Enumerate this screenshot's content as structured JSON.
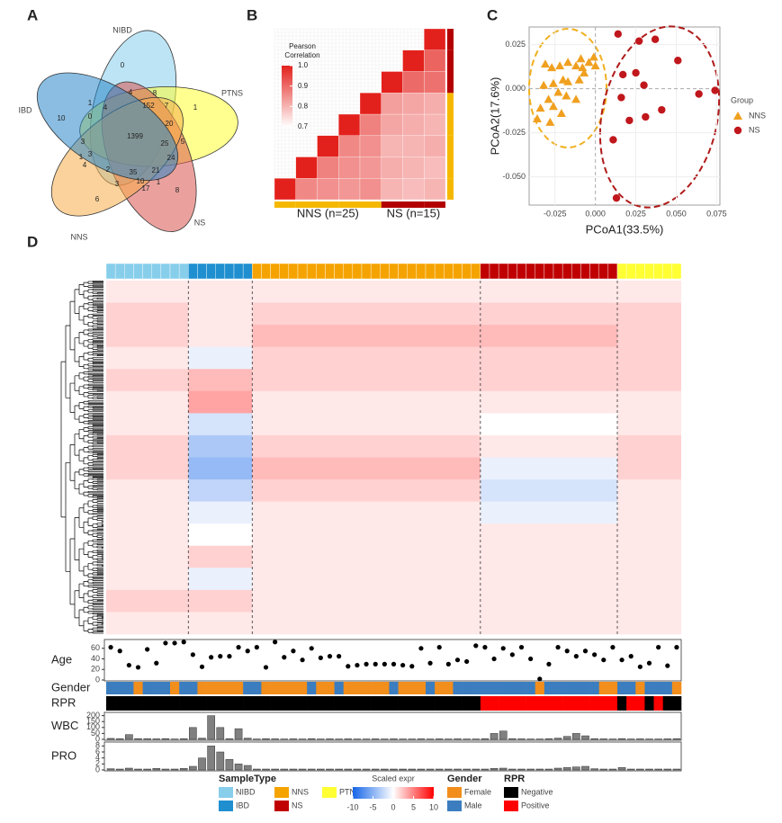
{
  "chart_data": [
    {
      "panel": "A",
      "type": "venn",
      "sets": [
        "NIBD",
        "PTNS",
        "NS",
        "NNS",
        "IBD"
      ],
      "colors": [
        "#87ceeb",
        "#ffff33",
        "#d9534f",
        "#f7ad4a",
        "#2a86c9"
      ],
      "counts": [
        0,
        1,
        8,
        6,
        10,
        1399,
        152,
        20,
        25,
        24,
        35,
        21,
        2,
        3,
        4,
        4,
        8,
        7,
        5,
        1,
        0,
        3,
        3,
        1,
        4,
        10,
        17,
        1
      ]
    },
    {
      "panel": "B",
      "type": "heatmap",
      "colorbar_title": [
        "Pearson",
        "Correlation"
      ],
      "zlim": [
        0.7,
        1.0
      ],
      "zticks": [
        0.7,
        0.8,
        0.9,
        {
          "value": 1.0,
          "label": "1.0"
        }
      ],
      "low_color": "#ffffff",
      "high_color": "#e3211c",
      "groups": [
        {
          "label": "NNS (n=25)",
          "color": "#f5b800"
        },
        {
          "label": "NS (n=15)",
          "color": "#b30000"
        }
      ],
      "block_group": [
        0,
        0,
        0,
        0,
        0,
        1,
        1,
        1
      ],
      "values": [
        [
          1,
          0.86,
          0.85,
          0.84,
          0.85,
          0.8,
          0.79,
          0.8
        ],
        [
          0.86,
          1,
          0.87,
          0.85,
          0.84,
          0.81,
          0.8,
          0.79
        ],
        [
          0.85,
          0.87,
          1,
          0.86,
          0.85,
          0.8,
          0.8,
          0.81
        ],
        [
          0.84,
          0.85,
          0.86,
          1,
          0.87,
          0.82,
          0.81,
          0.8
        ],
        [
          0.85,
          0.84,
          0.85,
          0.87,
          1,
          0.83,
          0.82,
          0.81
        ],
        [
          0.8,
          0.81,
          0.8,
          0.82,
          0.83,
          1,
          0.9,
          0.89
        ],
        [
          0.79,
          0.8,
          0.8,
          0.81,
          0.82,
          0.9,
          1,
          0.91
        ],
        [
          0.8,
          0.79,
          0.81,
          0.8,
          0.81,
          0.89,
          0.91,
          1
        ]
      ]
    },
    {
      "panel": "C",
      "type": "scatter",
      "x_label": "PCoA1(33.5%)",
      "y_label": "PCoA2(17.6%)",
      "legend_title": "Group",
      "xlim": [
        -0.041,
        0.077
      ],
      "ylim": [
        -0.066,
        0.035
      ],
      "xticks": [
        -0.025,
        {
          "value": 0,
          "label": "0.000"
        },
        0.025,
        {
          "value": 0.05,
          "label": "0.050"
        },
        0.075
      ],
      "yticks": [
        {
          "value": -0.05,
          "label": "-0.050"
        },
        -0.025,
        {
          "value": 0,
          "label": "0.000"
        },
        0.025
      ],
      "grid": true,
      "series": [
        {
          "name": "NNS",
          "color": "#f0a020",
          "marker": "triangle",
          "x": [
            -0.031,
            -0.027,
            -0.022,
            -0.017,
            -0.012,
            -0.009,
            -0.004,
            -0.001,
            0.0,
            -0.007,
            -0.02,
            -0.026,
            -0.017,
            -0.01,
            -0.023,
            -0.018,
            -0.029,
            -0.012,
            -0.034,
            -0.026,
            -0.021,
            -0.036,
            -0.028,
            -0.032,
            -0.008
          ],
          "y": [
            0.014,
            0.012,
            0.013,
            0.015,
            0.013,
            0.017,
            0.015,
            0.018,
            0.013,
            0.009,
            0.005,
            0.003,
            0.004,
            0.005,
            -0.002,
            -0.004,
            -0.006,
            -0.006,
            -0.011,
            -0.01,
            -0.014,
            -0.017,
            -0.019,
            0.002,
            0.012
          ]
        },
        {
          "name": "NS",
          "color": "#c0171c",
          "marker": "circle",
          "x": [
            0.014,
            0.027,
            0.037,
            0.051,
            0.025,
            0.017,
            0.03,
            0.064,
            0.074,
            0.016,
            0.041,
            0.031,
            0.021,
            0.011,
            0.013
          ],
          "y": [
            0.031,
            0.027,
            0.028,
            0.016,
            0.009,
            0.008,
            0.002,
            -0.003,
            -0.001,
            -0.005,
            -0.012,
            -0.016,
            -0.018,
            -0.029,
            -0.062
          ]
        }
      ]
    },
    {
      "panel": "D",
      "type": "heatmap",
      "sample_type_title": "SampleType",
      "sample_types": [
        "NIBD",
        "IBD",
        "NNS",
        "NS",
        "PTNS"
      ],
      "sample_type_colors": [
        "#87ceeb",
        "#1f8fd0",
        "#f5a300",
        "#c00000",
        "#ffff33"
      ],
      "samples": [
        "NIBD",
        "NIBD",
        "NIBD",
        "NIBD",
        "NIBD",
        "NIBD",
        "NIBD",
        "NIBD",
        "NIBD",
        "IBD",
        "IBD",
        "IBD",
        "IBD",
        "IBD",
        "IBD",
        "IBD",
        "NNS",
        "NNS",
        "NNS",
        "NNS",
        "NNS",
        "NNS",
        "NNS",
        "NNS",
        "NNS",
        "NNS",
        "NNS",
        "NNS",
        "NNS",
        "NNS",
        "NNS",
        "NNS",
        "NNS",
        "NNS",
        "NNS",
        "NNS",
        "NNS",
        "NNS",
        "NNS",
        "NNS",
        "NNS",
        "NS",
        "NS",
        "NS",
        "NS",
        "NS",
        "NS",
        "NS",
        "NS",
        "NS",
        "NS",
        "NS",
        "NS",
        "NS",
        "NS",
        "NS",
        "PTNS",
        "PTNS",
        "PTNS",
        "PTNS",
        "PTNS",
        "PTNS",
        "PTNS"
      ],
      "heatmap": {
        "title": "Scaled expr",
        "zlim": [
          -10,
          10
        ],
        "zticks": [
          -10,
          -5,
          0,
          5,
          10
        ],
        "low_color": "#1565e8",
        "mid_color": "#ffffff",
        "high_color": "#ff0000",
        "values": [
          [
            1,
            1,
            1,
            1,
            1
          ],
          [
            2,
            1,
            2,
            2,
            2
          ],
          [
            2,
            1,
            3,
            3,
            2
          ],
          [
            1,
            -1,
            2,
            2,
            2
          ],
          [
            2,
            3,
            2,
            2,
            2
          ],
          [
            1,
            4,
            1,
            1,
            1
          ],
          [
            1,
            -2,
            1,
            0,
            1
          ],
          [
            2,
            -4,
            2,
            1,
            2
          ],
          [
            2,
            -5,
            3,
            -1,
            2
          ],
          [
            1,
            -3,
            2,
            -2,
            1
          ],
          [
            1,
            -1,
            1,
            -1,
            1
          ],
          [
            1,
            0,
            1,
            1,
            1
          ],
          [
            1,
            2,
            1,
            1,
            1
          ],
          [
            1,
            -1,
            1,
            1,
            1
          ],
          [
            2,
            2,
            1,
            1,
            1
          ],
          [
            1,
            1,
            1,
            1,
            1
          ]
        ]
      },
      "age": {
        "label": "Age",
        "ylim": [
          0,
          75
        ],
        "yticks": [
          0,
          20,
          40,
          60
        ],
        "values": [
          62,
          55,
          28,
          24,
          58,
          32,
          70,
          70,
          72,
          48,
          25,
          43,
          45,
          45,
          62,
          55,
          62,
          24,
          72,
          43,
          55,
          38,
          60,
          42,
          45,
          45,
          26,
          28,
          30,
          30,
          30,
          30,
          28,
          26,
          60,
          32,
          62,
          30,
          38,
          35,
          65,
          62,
          40,
          60,
          48,
          62,
          40,
          2,
          30,
          62,
          55,
          45,
          55,
          48,
          38,
          62,
          38,
          45,
          25,
          32,
          62,
          27,
          62
        ]
      },
      "gender": {
        "label": "Gender",
        "title": "Gender",
        "categories": [
          "Female",
          "Male"
        ],
        "colors": [
          "#f28e1c",
          "#3b7dbf"
        ],
        "values": [
          "Male",
          "Male",
          "Male",
          "Female",
          "Male",
          "Male",
          "Male",
          "Female",
          "Male",
          "Male",
          "Female",
          "Female",
          "Female",
          "Female",
          "Female",
          "Male",
          "Male",
          "Female",
          "Female",
          "Female",
          "Female",
          "Female",
          "Male",
          "Female",
          "Female",
          "Male",
          "Female",
          "Female",
          "Female",
          "Female",
          "Female",
          "Male",
          "Female",
          "Female",
          "Female",
          "Male",
          "Female",
          "Female",
          "Male",
          "Male",
          "Male",
          "Male",
          "Male",
          "Male",
          "Male",
          "Male",
          "Male",
          "Female",
          "Male",
          "Male",
          "Male",
          "Male",
          "Male",
          "Male",
          "Female",
          "Female",
          "Male",
          "Male",
          "Female",
          "Male",
          "Male",
          "Male",
          "Female"
        ]
      },
      "rpr": {
        "label": "RPR",
        "title": "RPR",
        "categories": [
          "Negative",
          "Positive"
        ],
        "colors": [
          "#000000",
          "#ff0000"
        ],
        "values": [
          "Negative",
          "Negative",
          "Negative",
          "Negative",
          "Negative",
          "Negative",
          "Negative",
          "Negative",
          "Negative",
          "Negative",
          "Negative",
          "Negative",
          "Negative",
          "Negative",
          "Negative",
          "Negative",
          "Negative",
          "Negative",
          "Negative",
          "Negative",
          "Negative",
          "Negative",
          "Negative",
          "Negative",
          "Negative",
          "Negative",
          "Negative",
          "Negative",
          "Negative",
          "Negative",
          "Negative",
          "Negative",
          "Negative",
          "Negative",
          "Negative",
          "Negative",
          "Negative",
          "Negative",
          "Negative",
          "Negative",
          "Negative",
          "Positive",
          "Positive",
          "Positive",
          "Positive",
          "Positive",
          "Positive",
          "Positive",
          "Positive",
          "Positive",
          "Positive",
          "Positive",
          "Positive",
          "Positive",
          "Positive",
          "Positive",
          "Negative",
          "Positive",
          "Positive",
          "Negative",
          "Positive",
          "Negative",
          "Negative"
        ]
      },
      "wbc": {
        "label": "WBC",
        "ylim": [
          0,
          220
        ],
        "yticks": [
          0,
          50,
          100,
          150,
          200
        ],
        "color": "#808080",
        "values": [
          8,
          5,
          40,
          6,
          5,
          4,
          6,
          3,
          5,
          100,
          10,
          200,
          100,
          5,
          90,
          10,
          3,
          5,
          4,
          3,
          4,
          3,
          5,
          3,
          4,
          3,
          4,
          3,
          3,
          4,
          3,
          4,
          3,
          3,
          4,
          3,
          4,
          3,
          4,
          3,
          3,
          5,
          50,
          70,
          5,
          4,
          3,
          3,
          5,
          10,
          25,
          50,
          30,
          5,
          4,
          3,
          6,
          3,
          4,
          3,
          3,
          4,
          5
        ]
      },
      "pro": {
        "label": "PRO",
        "ylim": [
          0,
          9
        ],
        "yticks": [
          0,
          2,
          4,
          6,
          8
        ],
        "color": "#808080",
        "values": [
          0.4,
          0.3,
          0.6,
          0.3,
          0.3,
          0.5,
          0.3,
          0.3,
          0.5,
          1.2,
          4,
          8,
          6,
          3.5,
          2,
          1.5,
          0.3,
          0.3,
          0.3,
          0.3,
          0.3,
          0.3,
          0.3,
          0.3,
          0.3,
          0.3,
          0.3,
          0.3,
          0.3,
          0.3,
          0.3,
          0.3,
          0.3,
          0.3,
          0.3,
          0.3,
          0.3,
          0.3,
          0.3,
          0.3,
          0.3,
          0.3,
          0.5,
          0.6,
          0.3,
          0.3,
          0.3,
          0.3,
          0.3,
          0.6,
          0.8,
          1,
          1.2,
          0.4,
          0.3,
          0.3,
          0.8,
          0.3,
          0.3,
          0.3,
          0.3,
          0.3,
          0.3
        ]
      }
    }
  ]
}
